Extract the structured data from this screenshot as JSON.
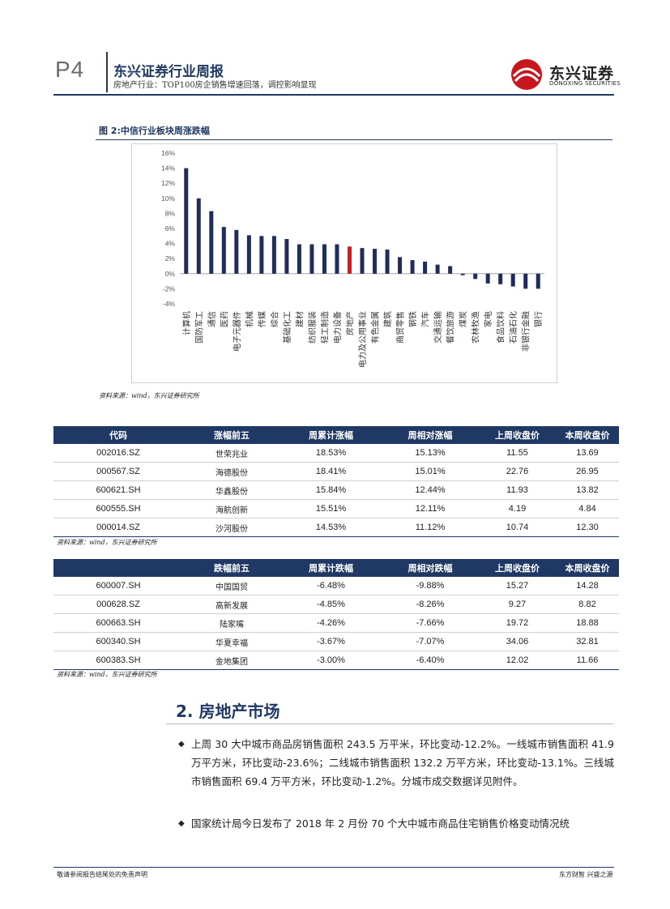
{
  "header": {
    "page": "P4",
    "title": "东兴证券行业周报",
    "subtitle": "房地产行业：TOP100房企销售增速回落，调控影响显现",
    "logo_cn": "东兴证券",
    "logo_en": "DONGXING SECURITIES",
    "brand_color": "#c8161e",
    "accent_color": "#1f3864"
  },
  "figure": {
    "title": "图 2:中信行业板块周涨跌幅",
    "source": "资料来源：wind，东兴证券研究所"
  },
  "chart_data": {
    "type": "bar",
    "categories": [
      "计算机",
      "国防军工",
      "通信",
      "医药",
      "电子元器件",
      "机械",
      "传媒",
      "综合",
      "基础化工",
      "建材",
      "纺织服装",
      "轻工制造",
      "电力设备",
      "房地产",
      "电力及公用事业",
      "有色金属",
      "建筑",
      "商贸零售",
      "钢铁",
      "汽车",
      "交通运输",
      "餐饮旅游",
      "煤炭",
      "农林牧渔",
      "家电",
      "食品饮料",
      "石油石化",
      "非银行金融",
      "银行"
    ],
    "values": [
      14.0,
      10.0,
      8.3,
      6.2,
      5.8,
      5.1,
      5.0,
      5.0,
      4.6,
      3.9,
      3.9,
      3.9,
      3.9,
      3.6,
      3.4,
      3.3,
      3.2,
      2.2,
      1.8,
      1.6,
      1.2,
      1.0,
      -0.2,
      -0.7,
      -1.3,
      -1.4,
      -1.7,
      -2.0,
      -2.0
    ],
    "highlight_category": "房地产",
    "bar_color": "#1f2d5c",
    "highlight_color": "#d7191c",
    "ylim": [
      -4,
      16
    ],
    "yticks": [
      "16%",
      "14%",
      "12%",
      "10%",
      "8%",
      "6%",
      "4%",
      "2%",
      "0%",
      "-2%",
      "-4%"
    ],
    "grid": false,
    "legend": "none"
  },
  "gainers": {
    "headers": [
      "代码",
      "涨幅前五",
      "周累计涨幅",
      "周相对涨幅",
      "上周收盘价",
      "本周收盘价"
    ],
    "rows": [
      [
        "002016.SZ",
        "世荣兆业",
        "18.53%",
        "15.13%",
        "11.55",
        "13.69"
      ],
      [
        "000567.SZ",
        "海德股份",
        "18.41%",
        "15.01%",
        "22.76",
        "26.95"
      ],
      [
        "600621.SH",
        "华鑫股份",
        "15.84%",
        "12.44%",
        "11.93",
        "13.82"
      ],
      [
        "600555.SH",
        "海航创新",
        "15.51%",
        "12.11%",
        "4.19",
        "4.84"
      ],
      [
        "000014.SZ",
        "沙河股份",
        "14.53%",
        "11.12%",
        "10.74",
        "12.30"
      ]
    ],
    "source": "资料来源：wind，东兴证券研究所"
  },
  "losers": {
    "headers": [
      "",
      "跌幅前五",
      "周累计跌幅",
      "周相对跌幅",
      "上周收盘价",
      "本周收盘价"
    ],
    "rows": [
      [
        "600007.SH",
        "中国国贸",
        "-6.48%",
        "-9.88%",
        "15.27",
        "14.28"
      ],
      [
        "000628.SZ",
        "高新发展",
        "-4.85%",
        "-8.26%",
        "9.27",
        "8.82"
      ],
      [
        "600663.SH",
        "陆家嘴",
        "-4.26%",
        "-7.66%",
        "19.72",
        "18.88"
      ],
      [
        "600340.SH",
        "华夏幸福",
        "-3.67%",
        "-7.07%",
        "34.06",
        "32.81"
      ],
      [
        "600383.SH",
        "金地集团",
        "-3.00%",
        "-6.40%",
        "12.02",
        "11.66"
      ]
    ],
    "source": "资料来源：wind，东兴证券研究所"
  },
  "section": {
    "title": "2. 房地产市场",
    "bullet_symbol": "◆",
    "para1": "上周 30 大中城市商品房销售面积 243.5 万平米，环比变动-12.2%。一线城市销售面积 41.9 万平方米，环比变动-23.6%；二线城市销售面积 132.2 万平方米，环比变动-13.1%。三线城市销售面积 69.4 万平方米，环比变动-1.2%。分城市成交数据详见附件。",
    "para2": "国家统计局今日发布了 2018 年 2 月份 70 个大中城市商品住宅销售价格变动情况统"
  },
  "footer": {
    "left": "敬请参阅报告结尾处的免责声明",
    "right": "东方财智 兴盛之源"
  }
}
